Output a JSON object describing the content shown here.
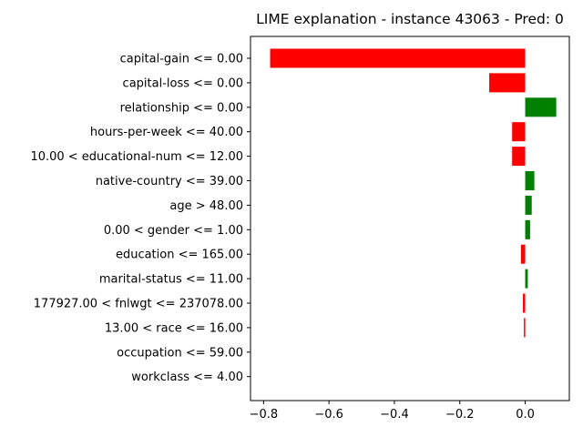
{
  "chart_data": {
    "type": "bar",
    "orientation": "horizontal",
    "title": "LIME explanation - instance 43063 - Pred: 0",
    "xlabel": "",
    "ylabel": "",
    "xlim": [
      -0.84,
      0.135
    ],
    "xticks": [
      -0.8,
      -0.6,
      -0.4,
      -0.2,
      0.0
    ],
    "xtick_labels": [
      "−0.8",
      "−0.6",
      "−0.4",
      "−0.2",
      "0.0"
    ],
    "grid": false,
    "colors": {
      "positive": "#008000",
      "negative": "#ff0000"
    },
    "categories": [
      "capital-gain <= 0.00",
      "capital-loss <= 0.00",
      "relationship <= 0.00",
      "hours-per-week <= 40.00",
      "10.00 < educational-num <= 12.00",
      "native-country <= 39.00",
      "age > 48.00",
      "0.00 < gender <= 1.00",
      "education <= 165.00",
      "marital-status <= 11.00",
      "177927.00 < fnlwgt <= 237078.00",
      "13.00 < race <= 16.00",
      "occupation <= 59.00",
      "workclass <= 4.00"
    ],
    "values": [
      -0.78,
      -0.11,
      0.095,
      -0.04,
      -0.04,
      0.028,
      0.02,
      0.015,
      -0.013,
      0.008,
      -0.007,
      -0.004,
      0.0,
      0.0
    ]
  }
}
